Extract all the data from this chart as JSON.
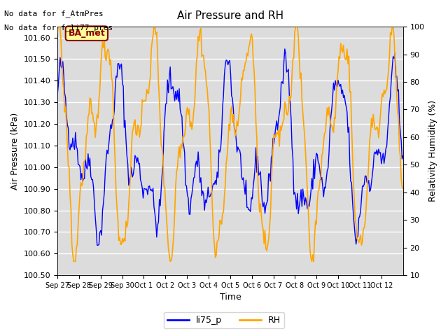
{
  "title": "Air Pressure and RH",
  "xlabel": "Time",
  "ylabel_left": "Air Pressure (kPa)",
  "ylabel_right": "Relativity Humidity (%)",
  "text_no_data": [
    "No data for f_AtmPres",
    "No data for f_li77_pres"
  ],
  "annotation_label": "BA_met",
  "annotation_color": "#8B0000",
  "annotation_bg": "#FFFF99",
  "left_ylim": [
    100.5,
    101.65
  ],
  "right_ylim": [
    10,
    100
  ],
  "left_yticks": [
    100.5,
    100.6,
    100.7,
    100.8,
    100.9,
    101.0,
    101.1,
    101.2,
    101.3,
    101.4,
    101.5,
    101.6
  ],
  "right_yticks": [
    10,
    20,
    30,
    40,
    50,
    60,
    70,
    80,
    90,
    100
  ],
  "xtick_labels": [
    "Sep 27",
    "Sep 28",
    "Sep 29",
    "Sep 30",
    "Oct 1",
    "Oct 2",
    "Oct 3",
    "Oct 4",
    "Oct 5",
    "Oct 6",
    "Oct 7",
    "Oct 8",
    "Oct 9",
    "Oct 10",
    "Oct 11",
    "Oct 12"
  ],
  "legend_entries": [
    "li75_p",
    "RH"
  ],
  "line_colors": [
    "blue",
    "orange"
  ],
  "background_color": "#DCDCDC",
  "grid_color": "white"
}
